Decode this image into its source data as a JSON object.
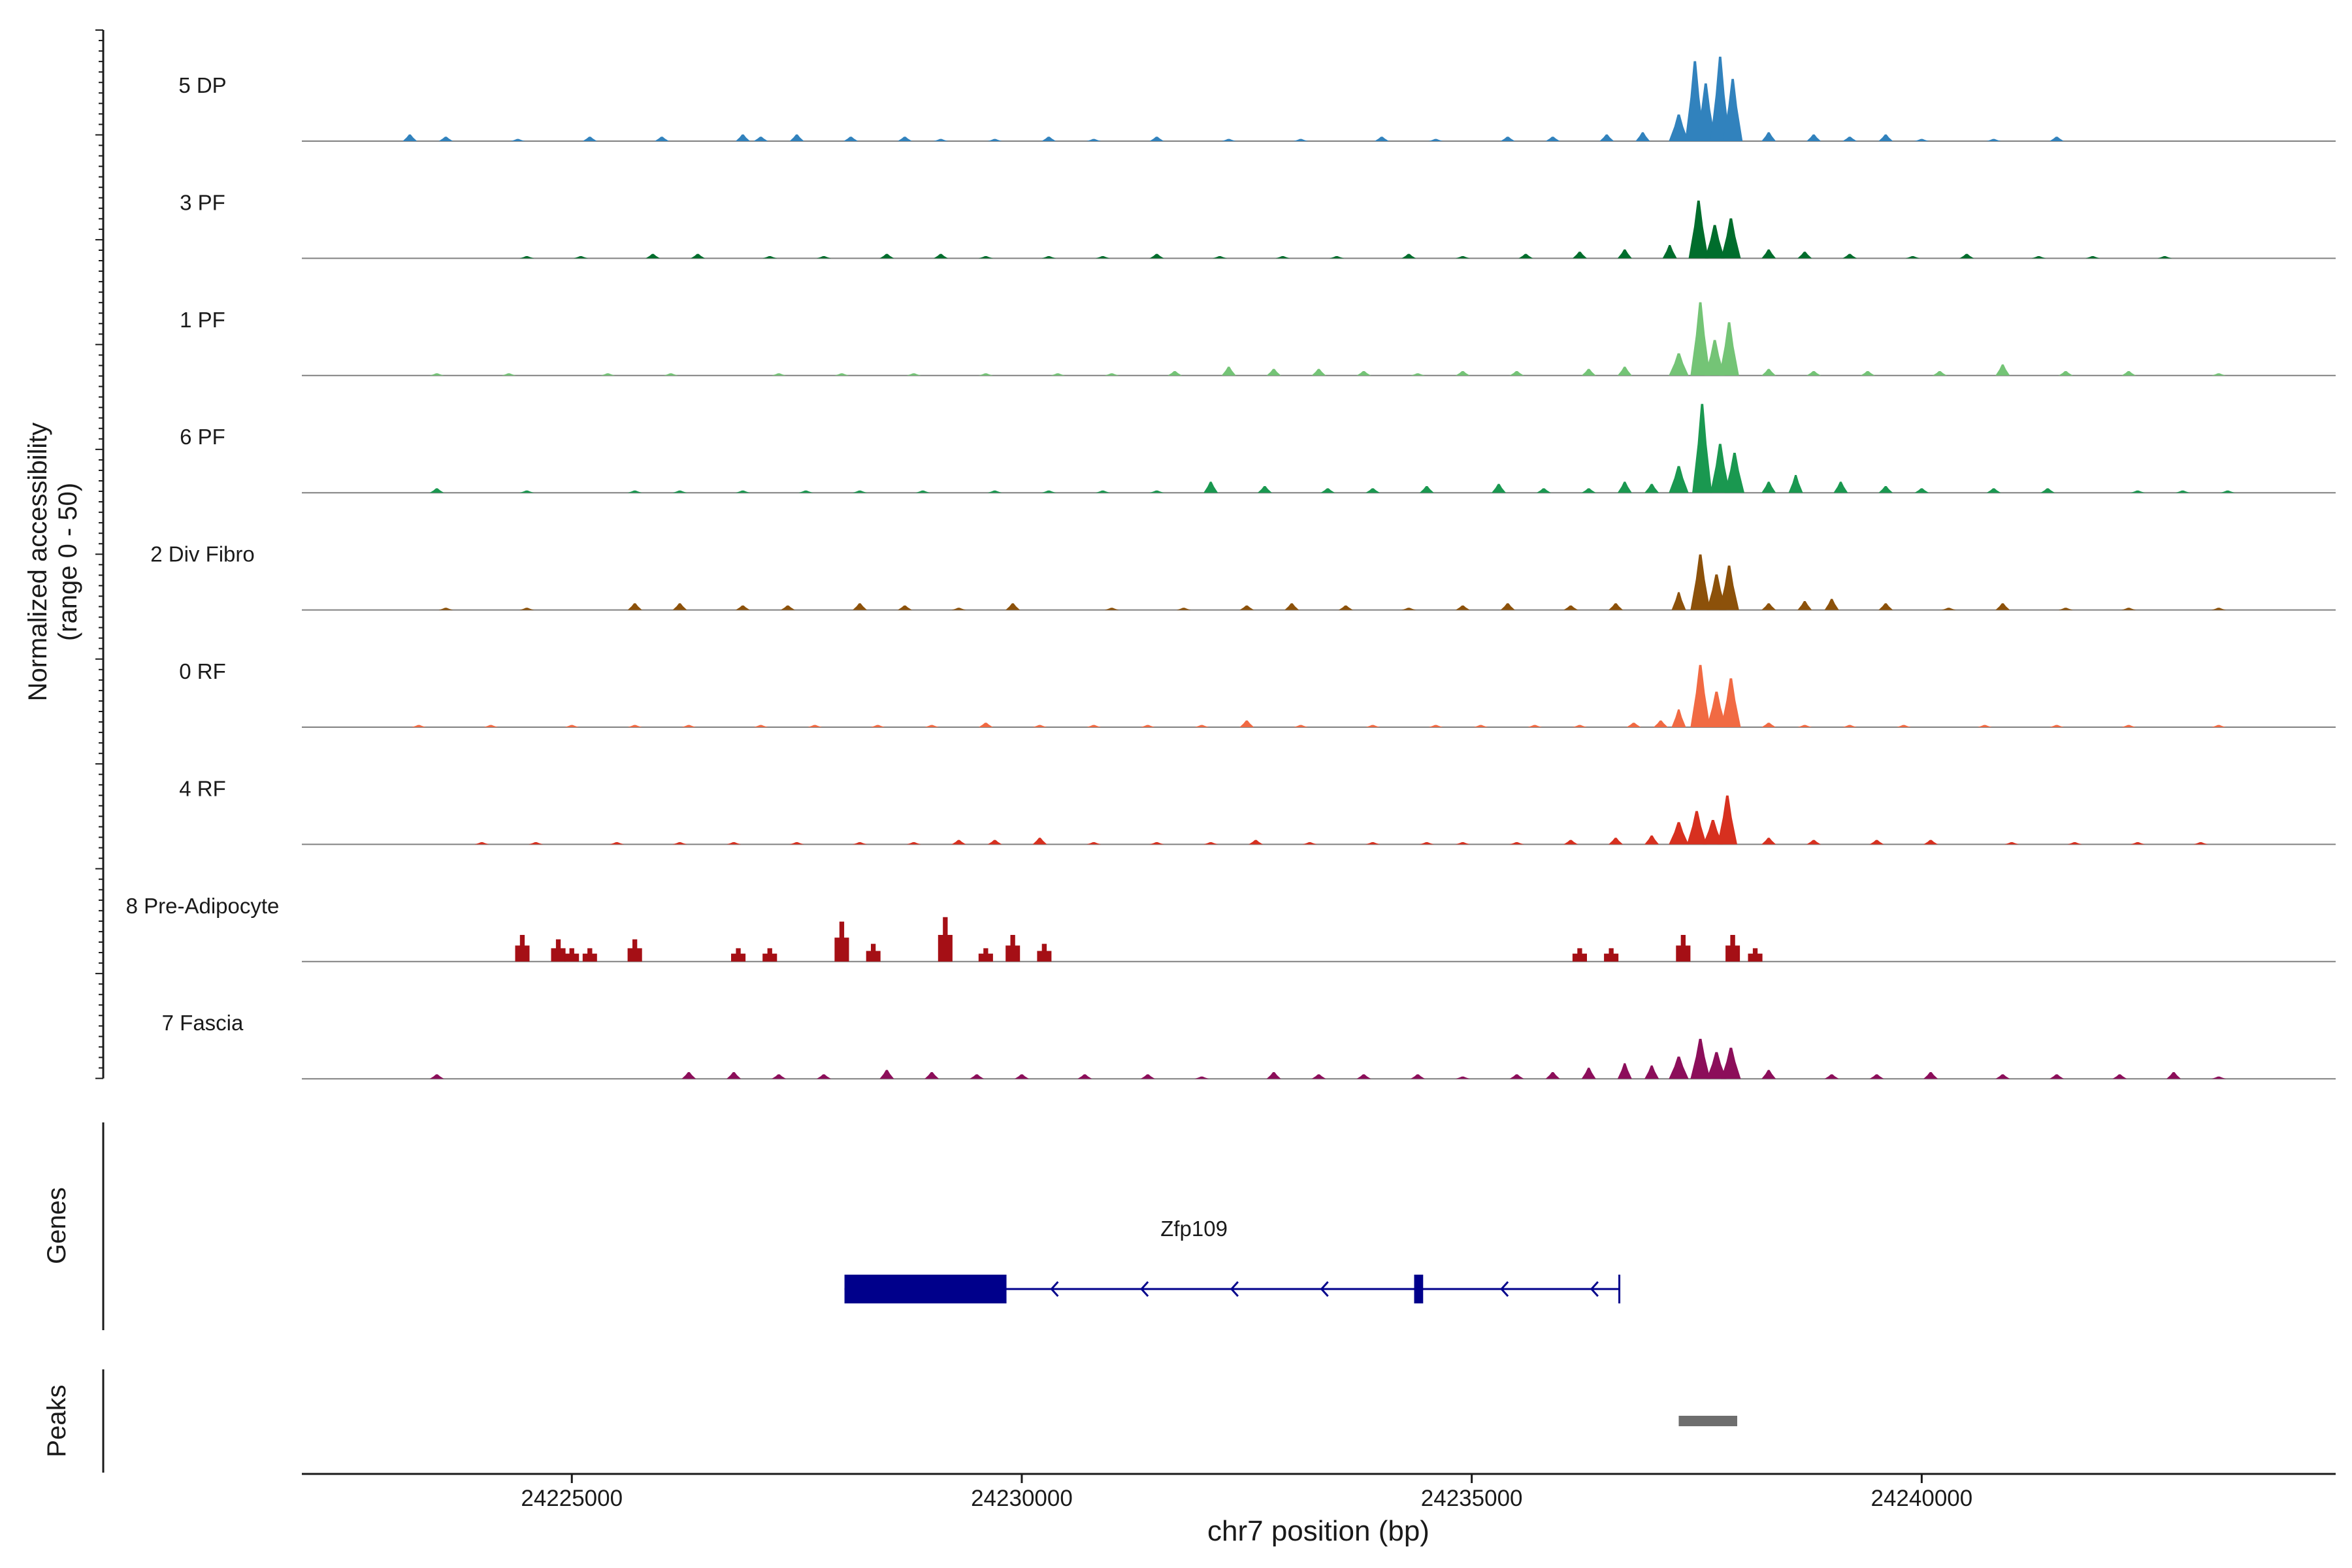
{
  "chart_data": {
    "type": "area",
    "title": "",
    "xlabel": "chr7 position (bp)",
    "ylabel_line1": "Normalized accessibility",
    "ylabel_line2": "(range 0 - 50)",
    "y_range": [
      0,
      50
    ],
    "x_range": [
      24222000,
      24244600
    ],
    "x_ticks": [
      {
        "value": 24225000,
        "label": "24225000"
      },
      {
        "value": 24230000,
        "label": "24230000"
      },
      {
        "value": 24235000,
        "label": "24235000"
      },
      {
        "value": 24240000,
        "label": "24240000"
      }
    ],
    "series": [
      {
        "name": "5 DP",
        "color": "#3182bd",
        "peaks": [
          [
            24223200,
            3
          ],
          [
            24223600,
            2
          ],
          [
            24224400,
            1
          ],
          [
            24225200,
            2
          ],
          [
            24226000,
            2
          ],
          [
            24226900,
            3
          ],
          [
            24227100,
            2
          ],
          [
            24227500,
            3
          ],
          [
            24228100,
            2
          ],
          [
            24228700,
            2
          ],
          [
            24229100,
            1
          ],
          [
            24229700,
            1
          ],
          [
            24230300,
            2
          ],
          [
            24230800,
            1
          ],
          [
            24231500,
            2
          ],
          [
            24232300,
            1
          ],
          [
            24233100,
            1
          ],
          [
            24234000,
            2
          ],
          [
            24234600,
            1
          ],
          [
            24235400,
            2
          ],
          [
            24235900,
            2
          ],
          [
            24236500,
            3
          ],
          [
            24236900,
            4
          ],
          [
            24237300,
            12
          ],
          [
            24237480,
            36
          ],
          [
            24237600,
            26
          ],
          [
            24237760,
            38
          ],
          [
            24237900,
            28
          ],
          [
            24238300,
            4
          ],
          [
            24238800,
            3
          ],
          [
            24239200,
            2
          ],
          [
            24239600,
            3
          ],
          [
            24240000,
            1
          ],
          [
            24240800,
            1
          ],
          [
            24241500,
            2
          ]
        ]
      },
      {
        "name": "3 PF",
        "color": "#006d2c",
        "peaks": [
          [
            24224500,
            1
          ],
          [
            24225100,
            1
          ],
          [
            24225900,
            2
          ],
          [
            24226400,
            2
          ],
          [
            24227200,
            1
          ],
          [
            24227800,
            1
          ],
          [
            24228500,
            2
          ],
          [
            24229100,
            2
          ],
          [
            24229600,
            1
          ],
          [
            24230300,
            1
          ],
          [
            24230900,
            1
          ],
          [
            24231500,
            2
          ],
          [
            24232200,
            1
          ],
          [
            24232900,
            1
          ],
          [
            24233500,
            1
          ],
          [
            24234300,
            2
          ],
          [
            24234900,
            1
          ],
          [
            24235600,
            2
          ],
          [
            24236200,
            3
          ],
          [
            24236700,
            4
          ],
          [
            24237200,
            6
          ],
          [
            24237520,
            26
          ],
          [
            24237700,
            15
          ],
          [
            24237880,
            18
          ],
          [
            24238300,
            4
          ],
          [
            24238700,
            3
          ],
          [
            24239200,
            2
          ],
          [
            24239900,
            1
          ],
          [
            24240500,
            2
          ],
          [
            24241300,
            1
          ],
          [
            24241900,
            1
          ],
          [
            24242700,
            1
          ]
        ]
      },
      {
        "name": "1 PF",
        "color": "#74c476",
        "peaks": [
          [
            24223500,
            1
          ],
          [
            24224300,
            1
          ],
          [
            24225400,
            1
          ],
          [
            24226100,
            1
          ],
          [
            24227300,
            1
          ],
          [
            24228000,
            1
          ],
          [
            24228800,
            1
          ],
          [
            24229600,
            1
          ],
          [
            24230400,
            1
          ],
          [
            24231000,
            1
          ],
          [
            24231700,
            2
          ],
          [
            24232300,
            4
          ],
          [
            24232800,
            3
          ],
          [
            24233300,
            3
          ],
          [
            24233800,
            2
          ],
          [
            24234400,
            1
          ],
          [
            24234900,
            2
          ],
          [
            24235500,
            2
          ],
          [
            24236300,
            3
          ],
          [
            24236700,
            4
          ],
          [
            24237300,
            10
          ],
          [
            24237540,
            33
          ],
          [
            24237700,
            16
          ],
          [
            24237860,
            24
          ],
          [
            24238300,
            3
          ],
          [
            24238800,
            2
          ],
          [
            24239400,
            2
          ],
          [
            24240200,
            2
          ],
          [
            24240900,
            5
          ],
          [
            24241600,
            2
          ],
          [
            24242300,
            2
          ],
          [
            24243300,
            1
          ]
        ]
      },
      {
        "name": "6 PF",
        "color": "#1a9850",
        "peaks": [
          [
            24223500,
            2
          ],
          [
            24224500,
            1
          ],
          [
            24225700,
            1
          ],
          [
            24226200,
            1
          ],
          [
            24226900,
            1
          ],
          [
            24227600,
            1
          ],
          [
            24228200,
            1
          ],
          [
            24228900,
            1
          ],
          [
            24229700,
            1
          ],
          [
            24230300,
            1
          ],
          [
            24230900,
            1
          ],
          [
            24231500,
            1
          ],
          [
            24232100,
            5
          ],
          [
            24232700,
            3
          ],
          [
            24233400,
            2
          ],
          [
            24233900,
            2
          ],
          [
            24234500,
            3
          ],
          [
            24235300,
            4
          ],
          [
            24235800,
            2
          ],
          [
            24236300,
            2
          ],
          [
            24236700,
            5
          ],
          [
            24237000,
            4
          ],
          [
            24237300,
            12
          ],
          [
            24237560,
            40
          ],
          [
            24237760,
            22
          ],
          [
            24237920,
            18
          ],
          [
            24238300,
            5
          ],
          [
            24238600,
            8
          ],
          [
            24239100,
            5
          ],
          [
            24239600,
            3
          ],
          [
            24240000,
            2
          ],
          [
            24240800,
            2
          ],
          [
            24241400,
            2
          ],
          [
            24242400,
            1
          ],
          [
            24242900,
            1
          ],
          [
            24243400,
            1
          ]
        ]
      },
      {
        "name": "2 Div Fibro",
        "color": "#8c510a",
        "peaks": [
          [
            24223600,
            1
          ],
          [
            24224500,
            1
          ],
          [
            24225700,
            3
          ],
          [
            24226200,
            3
          ],
          [
            24226900,
            2
          ],
          [
            24227400,
            2
          ],
          [
            24228200,
            3
          ],
          [
            24228700,
            2
          ],
          [
            24229300,
            1
          ],
          [
            24229900,
            3
          ],
          [
            24231000,
            1
          ],
          [
            24231800,
            1
          ],
          [
            24232500,
            2
          ],
          [
            24233000,
            3
          ],
          [
            24233600,
            2
          ],
          [
            24234300,
            1
          ],
          [
            24234900,
            2
          ],
          [
            24235400,
            3
          ],
          [
            24236100,
            2
          ],
          [
            24236600,
            3
          ],
          [
            24237300,
            8
          ],
          [
            24237540,
            25
          ],
          [
            24237720,
            16
          ],
          [
            24237860,
            20
          ],
          [
            24238300,
            3
          ],
          [
            24238700,
            4
          ],
          [
            24239000,
            5
          ],
          [
            24239600,
            3
          ],
          [
            24240300,
            1
          ],
          [
            24240900,
            3
          ],
          [
            24241600,
            1
          ],
          [
            24242300,
            1
          ],
          [
            24243300,
            1
          ]
        ]
      },
      {
        "name": "0 RF",
        "color": "#f16a43",
        "peaks": [
          [
            24223300,
            1
          ],
          [
            24224100,
            1
          ],
          [
            24225000,
            1
          ],
          [
            24225700,
            1
          ],
          [
            24226300,
            1
          ],
          [
            24227100,
            1
          ],
          [
            24227700,
            1
          ],
          [
            24228400,
            1
          ],
          [
            24229000,
            1
          ],
          [
            24229600,
            2
          ],
          [
            24230200,
            1
          ],
          [
            24230800,
            1
          ],
          [
            24231400,
            1
          ],
          [
            24232000,
            1
          ],
          [
            24232500,
            3
          ],
          [
            24233100,
            1
          ],
          [
            24233900,
            1
          ],
          [
            24234600,
            1
          ],
          [
            24235100,
            1
          ],
          [
            24235700,
            1
          ],
          [
            24236200,
            1
          ],
          [
            24236800,
            2
          ],
          [
            24237100,
            3
          ],
          [
            24237300,
            8
          ],
          [
            24237540,
            28
          ],
          [
            24237720,
            16
          ],
          [
            24237880,
            22
          ],
          [
            24238300,
            2
          ],
          [
            24238700,
            1
          ],
          [
            24239200,
            1
          ],
          [
            24239800,
            1
          ],
          [
            24240700,
            1
          ],
          [
            24241500,
            1
          ],
          [
            24242300,
            1
          ],
          [
            24243300,
            1
          ]
        ]
      },
      {
        "name": "4 RF",
        "color": "#d7301f",
        "peaks": [
          [
            24224000,
            1
          ],
          [
            24224600,
            1
          ],
          [
            24225500,
            1
          ],
          [
            24226200,
            1
          ],
          [
            24226800,
            1
          ],
          [
            24227500,
            1
          ],
          [
            24228200,
            1
          ],
          [
            24228800,
            1
          ],
          [
            24229300,
            2
          ],
          [
            24229700,
            2
          ],
          [
            24230200,
            3
          ],
          [
            24230800,
            1
          ],
          [
            24231500,
            1
          ],
          [
            24232100,
            1
          ],
          [
            24232600,
            2
          ],
          [
            24233200,
            1
          ],
          [
            24233900,
            1
          ],
          [
            24234500,
            1
          ],
          [
            24234900,
            1
          ],
          [
            24235500,
            1
          ],
          [
            24236100,
            2
          ],
          [
            24236600,
            3
          ],
          [
            24237000,
            4
          ],
          [
            24237300,
            10
          ],
          [
            24237500,
            15
          ],
          [
            24237680,
            11
          ],
          [
            24237840,
            22
          ],
          [
            24238300,
            3
          ],
          [
            24238800,
            2
          ],
          [
            24239500,
            2
          ],
          [
            24240100,
            2
          ],
          [
            24241000,
            1
          ],
          [
            24241700,
            1
          ],
          [
            24242400,
            1
          ],
          [
            24243100,
            1
          ]
        ]
      },
      {
        "name": "8 Pre-Adipocyte",
        "color": "#a50f15",
        "peaks": [
          [
            24224450,
            12
          ],
          [
            24224850,
            10
          ],
          [
            24225000,
            6
          ],
          [
            24225200,
            6
          ],
          [
            24225700,
            10
          ],
          [
            24226850,
            6
          ],
          [
            24227200,
            6
          ],
          [
            24228000,
            18
          ],
          [
            24228350,
            8
          ],
          [
            24229150,
            20
          ],
          [
            24229600,
            6
          ],
          [
            24229900,
            12
          ],
          [
            24230250,
            8
          ],
          [
            24236200,
            6
          ],
          [
            24236550,
            6
          ],
          [
            24237350,
            12
          ],
          [
            24237900,
            12
          ],
          [
            24238150,
            6
          ]
        ]
      },
      {
        "name": "7 Fascia",
        "color": "#8c0e5a",
        "peaks": [
          [
            24223500,
            2
          ],
          [
            24226300,
            3
          ],
          [
            24226800,
            3
          ],
          [
            24227300,
            2
          ],
          [
            24227800,
            2
          ],
          [
            24228500,
            4
          ],
          [
            24229000,
            3
          ],
          [
            24229500,
            2
          ],
          [
            24230000,
            2
          ],
          [
            24230700,
            2
          ],
          [
            24231400,
            2
          ],
          [
            24232000,
            1
          ],
          [
            24232800,
            3
          ],
          [
            24233300,
            2
          ],
          [
            24233800,
            2
          ],
          [
            24234400,
            2
          ],
          [
            24234900,
            1
          ],
          [
            24235500,
            2
          ],
          [
            24235900,
            3
          ],
          [
            24236300,
            5
          ],
          [
            24236700,
            7
          ],
          [
            24237000,
            6
          ],
          [
            24237300,
            10
          ],
          [
            24237540,
            18
          ],
          [
            24237720,
            12
          ],
          [
            24237880,
            14
          ],
          [
            24238300,
            4
          ],
          [
            24239000,
            2
          ],
          [
            24239500,
            2
          ],
          [
            24240100,
            3
          ],
          [
            24240900,
            2
          ],
          [
            24241500,
            2
          ],
          [
            24242200,
            2
          ],
          [
            24242800,
            3
          ],
          [
            24243300,
            1
          ]
        ]
      }
    ],
    "genes_label": "Genes",
    "gene": {
      "name": "Zfp109",
      "strand": "-",
      "start": 24228030,
      "end": 24236640,
      "exons": [
        [
          24228030,
          24229830
        ],
        [
          24234360,
          24234460
        ]
      ]
    },
    "peaks_label": "Peaks",
    "peak_regions": [
      [
        24237300,
        24237950
      ]
    ]
  }
}
